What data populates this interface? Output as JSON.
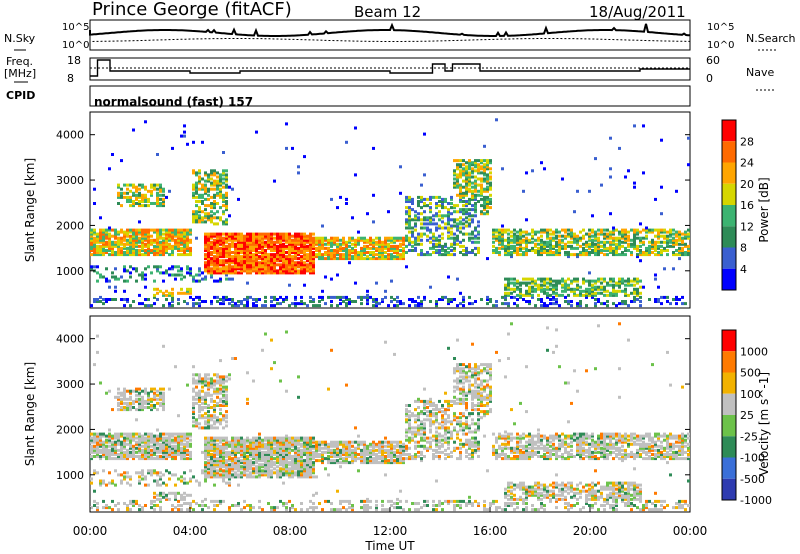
{
  "header": {
    "station": "Prince George (fitACF)",
    "beam": "Beam 12",
    "date": "18/Aug/2011"
  },
  "top_panel": {
    "nsky_label": "N.Sky",
    "nsearch_label": "N.Search",
    "freq_label_1": "Freq.",
    "freq_label_2": "[MHz]",
    "nave_label": "Nave",
    "cpid_label": "CPID",
    "cpid_value": "normalsound (fast) 157",
    "left_ticks_noise": [
      "10^5",
      "10^0"
    ],
    "right_ticks_noise": [
      "10^5",
      "10^0"
    ],
    "left_ticks_freq": [
      "18",
      "8"
    ],
    "right_ticks_nave": [
      "60",
      "0"
    ]
  },
  "colors": {
    "power_scale": [
      "#0000ff",
      "#3a5fd0",
      "#2e8b57",
      "#3cb371",
      "#d6d600",
      "#ffa500",
      "#ff6a00",
      "#ff0000"
    ],
    "velocity_scale": [
      "#2e3bb0",
      "#3a6fd8",
      "#2e8b57",
      "#6cc24a",
      "#c0c0c0",
      "#f2b200",
      "#ff7a00",
      "#ff0000"
    ]
  },
  "chart_data": [
    {
      "type": "heatmap",
      "name": "power",
      "xlabel": "",
      "ylabel": "Slant Range [km]",
      "xlim": [
        0,
        24
      ],
      "ylim": [
        180,
        4500
      ],
      "y_ticks": [
        1000,
        2000,
        3000,
        4000
      ],
      "colorbar_label": "Power [dB]",
      "colorbar_ticks": [
        "28",
        "24",
        "20",
        "16",
        "12",
        "8",
        "4"
      ]
    },
    {
      "type": "heatmap",
      "name": "velocity",
      "xlabel": "Time UT",
      "ylabel": "Slant Range [km]",
      "xlim": [
        0,
        24
      ],
      "ylim": [
        180,
        4500
      ],
      "x_ticks": [
        "00:00",
        "04:00",
        "08:00",
        "12:00",
        "16:00",
        "20:00",
        "00:00"
      ],
      "y_ticks": [
        1000,
        2000,
        3000,
        4000
      ],
      "colorbar_label": "Velocity [m s^-1]",
      "colorbar_ticks": [
        "1000",
        "500",
        "100",
        "25",
        "-25",
        "-100",
        "-500",
        "-1000"
      ]
    }
  ]
}
